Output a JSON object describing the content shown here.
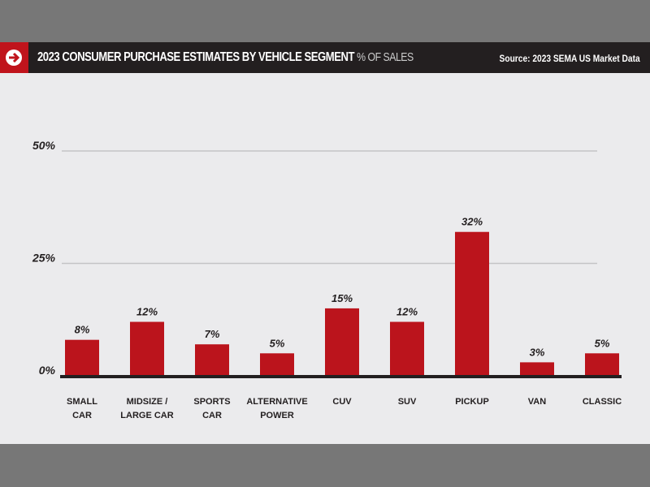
{
  "header": {
    "icon": "arrow-right-circle-icon",
    "title": "2023 CONSUMER PURCHASE ESTIMATES BY VEHICLE SEGMENT",
    "unit": "% OF SALES",
    "source": "Source: 2023 SEMA US Market Data"
  },
  "chart_data": {
    "type": "bar",
    "title": "2023 CONSUMER PURCHASE ESTIMATES BY VEHICLE SEGMENT",
    "ylabel": "% OF SALES",
    "categories": [
      [
        "SMALL",
        "CAR"
      ],
      [
        "MIDSIZE /",
        "LARGE CAR"
      ],
      [
        "SPORTS",
        "CAR"
      ],
      [
        "ALTERNATIVE",
        "POWER"
      ],
      [
        "CUV"
      ],
      [
        "SUV"
      ],
      [
        "PICKUP"
      ],
      [
        "VAN"
      ],
      [
        "CLASSIC"
      ]
    ],
    "values": [
      8,
      12,
      7,
      5,
      15,
      12,
      32,
      3,
      5
    ],
    "data_labels": [
      "8%",
      "12%",
      "7%",
      "5%",
      "15%",
      "12%",
      "32%",
      "3%",
      "5%"
    ],
    "yticks": [
      0,
      25,
      50
    ],
    "ytick_labels": [
      "0%",
      "25%",
      "50%"
    ],
    "ylim": [
      0,
      50
    ],
    "grid": true,
    "bar_color": "#bb141c"
  }
}
